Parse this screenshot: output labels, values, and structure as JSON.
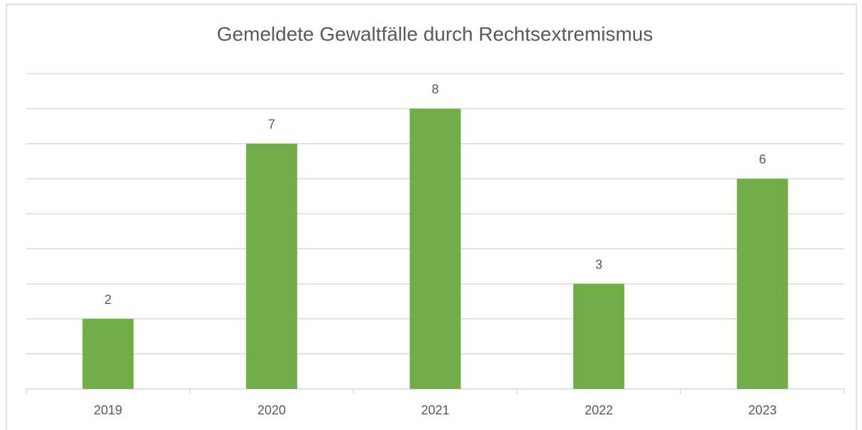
{
  "chart_data": {
    "type": "bar",
    "title": "Gemeldete Gewaltfälle durch Rechtsextremismus",
    "categories": [
      "2019",
      "2020",
      "2021",
      "2022",
      "2023"
    ],
    "values": [
      2,
      7,
      8,
      3,
      6
    ],
    "color": "#70ad47",
    "ylim": [
      0,
      9
    ],
    "yticks": [
      0,
      1,
      2,
      3,
      4,
      5,
      6,
      7,
      8,
      9
    ],
    "grid": true
  }
}
